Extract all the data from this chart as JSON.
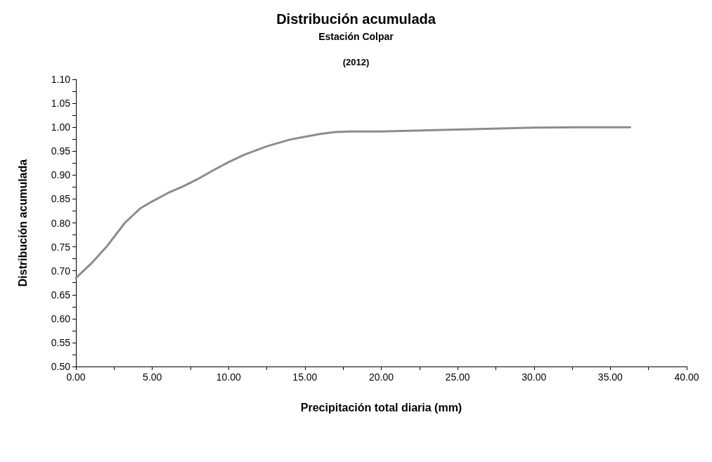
{
  "chart_data": {
    "type": "line",
    "title": "Distribución acumulada",
    "subtitle": "Estación Colpar",
    "annotations": [
      "(2012)"
    ],
    "xlabel": "Precipitación total diaria (mm)",
    "ylabel": "Distribución acumulada",
    "x": [
      0,
      1,
      2,
      3.2,
      4.2,
      5,
      6,
      7,
      8,
      9,
      10,
      11,
      12.5,
      14,
      15,
      16,
      17,
      18,
      20,
      25,
      30,
      33,
      36.3
    ],
    "series": [
      {
        "color": "#8c8c8c",
        "values": [
          0.685,
          0.715,
          0.75,
          0.8,
          0.83,
          0.845,
          0.862,
          0.876,
          0.892,
          0.91,
          0.927,
          0.942,
          0.96,
          0.974,
          0.98,
          0.986,
          0.99,
          0.991,
          0.991,
          0.995,
          0.999,
          1.0,
          1.0
        ]
      }
    ],
    "xlim": [
      0,
      40
    ],
    "ylim": [
      0.5,
      1.1
    ],
    "xticks": [
      {
        "value": 0,
        "label": "0.00"
      },
      {
        "value": 2.5,
        "label": null
      },
      {
        "value": 5,
        "label": "5.00"
      },
      {
        "value": 7.5,
        "label": null
      },
      {
        "value": 10,
        "label": "10.00"
      },
      {
        "value": 12.5,
        "label": null
      },
      {
        "value": 15,
        "label": "15.00"
      },
      {
        "value": 17.5,
        "label": null
      },
      {
        "value": 20,
        "label": "20.00"
      },
      {
        "value": 22.5,
        "label": null
      },
      {
        "value": 25,
        "label": "25.00"
      },
      {
        "value": 27.5,
        "label": null
      },
      {
        "value": 30,
        "label": "30.00"
      },
      {
        "value": 32.5,
        "label": null
      },
      {
        "value": 35,
        "label": "35.00"
      },
      {
        "value": 37.5,
        "label": null
      },
      {
        "value": 40,
        "label": "40.00"
      }
    ],
    "yticks": [
      {
        "value": 0.5,
        "label": "0.50"
      },
      {
        "value": 0.525,
        "label": null
      },
      {
        "value": 0.55,
        "label": "0.55"
      },
      {
        "value": 0.575,
        "label": null
      },
      {
        "value": 0.6,
        "label": "0.60"
      },
      {
        "value": 0.625,
        "label": null
      },
      {
        "value": 0.65,
        "label": "0.65"
      },
      {
        "value": 0.675,
        "label": null
      },
      {
        "value": 0.7,
        "label": "0.70"
      },
      {
        "value": 0.725,
        "label": null
      },
      {
        "value": 0.75,
        "label": "0.75"
      },
      {
        "value": 0.775,
        "label": null
      },
      {
        "value": 0.8,
        "label": "0.80"
      },
      {
        "value": 0.825,
        "label": null
      },
      {
        "value": 0.85,
        "label": "0.85"
      },
      {
        "value": 0.875,
        "label": null
      },
      {
        "value": 0.9,
        "label": "0.90"
      },
      {
        "value": 0.925,
        "label": null
      },
      {
        "value": 0.95,
        "label": "0.95"
      },
      {
        "value": 0.975,
        "label": null
      },
      {
        "value": 1.0,
        "label": "1.00"
      },
      {
        "value": 1.025,
        "label": null
      },
      {
        "value": 1.05,
        "label": "1.05"
      },
      {
        "value": 1.075,
        "label": null
      },
      {
        "value": 1.1,
        "label": "1.10"
      }
    ],
    "grid": false,
    "marker": "none",
    "line_style": "solid"
  }
}
